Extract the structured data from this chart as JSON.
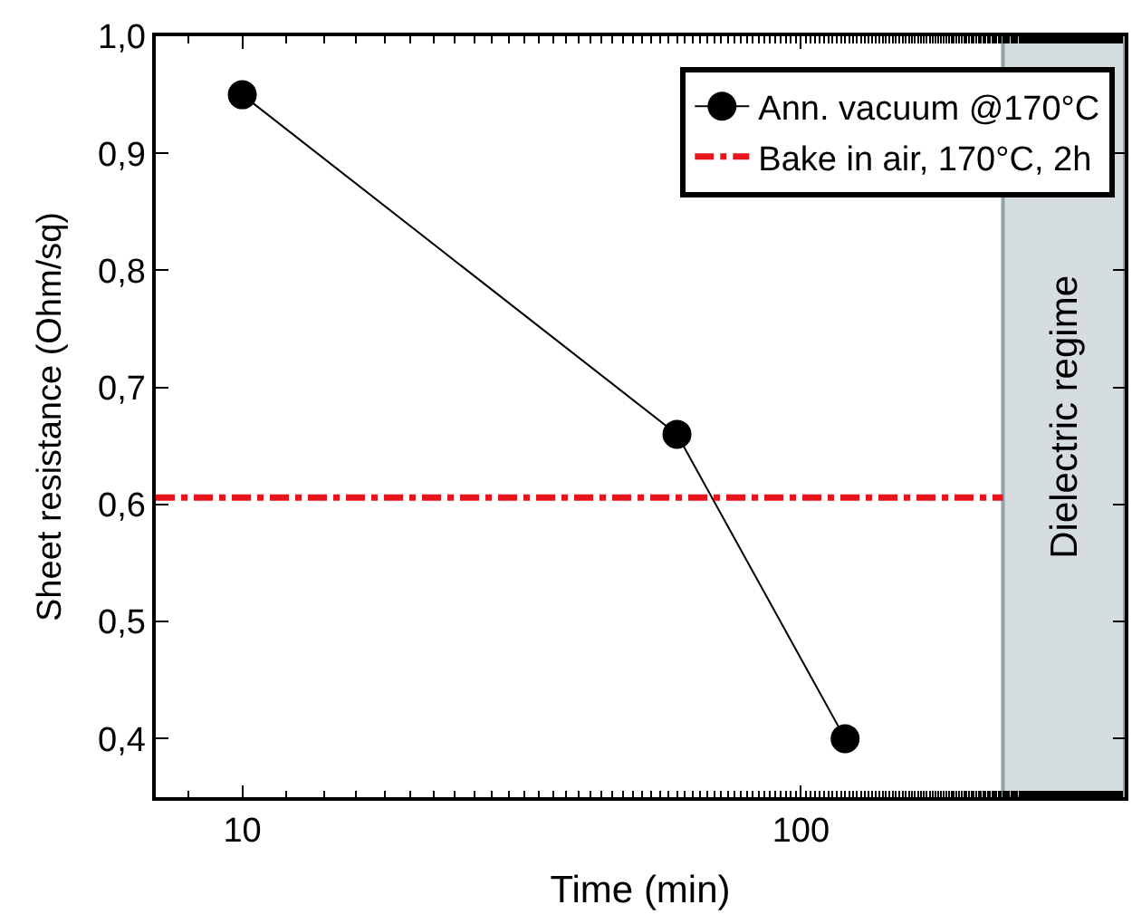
{
  "chart_data": {
    "type": "line",
    "xlabel": "Time (min)",
    "ylabel": "Sheet resistance (Ohm/sq)",
    "x": [
      10,
      60,
      120
    ],
    "series": [
      {
        "name": "Ann. vacuum @170°C",
        "color": "#000000",
        "values": [
          0.95,
          0.66,
          0.4
        ]
      }
    ],
    "log": "x",
    "xlim": [
      7,
      380
    ],
    "xticks": [
      10,
      100
    ],
    "ylim": [
      0.35,
      1.0
    ],
    "yticks": [
      {
        "value": 0.4,
        "label": "0,4"
      },
      {
        "value": 0.5,
        "label": "0,5"
      },
      {
        "value": 0.6,
        "label": "0,6"
      },
      {
        "value": 0.7,
        "label": "0,7"
      },
      {
        "value": 0.8,
        "label": "0,8"
      },
      {
        "value": 0.9,
        "label": "0,9"
      },
      {
        "value": 1.0,
        "label": "1,0"
      }
    ],
    "ref_lines": [
      {
        "axis": "y",
        "value": 0.606,
        "label": "Bake in air, 170°C, 2h",
        "color": "#e8141c",
        "line_style": "dashdot"
      }
    ],
    "bands": [
      {
        "axis": "x",
        "from": 230,
        "to": 380,
        "label": "Dielectric regime",
        "color": "#d5dde0"
      }
    ],
    "marker": "circle",
    "line_style": "solid",
    "grid": false,
    "legend": "top right"
  }
}
